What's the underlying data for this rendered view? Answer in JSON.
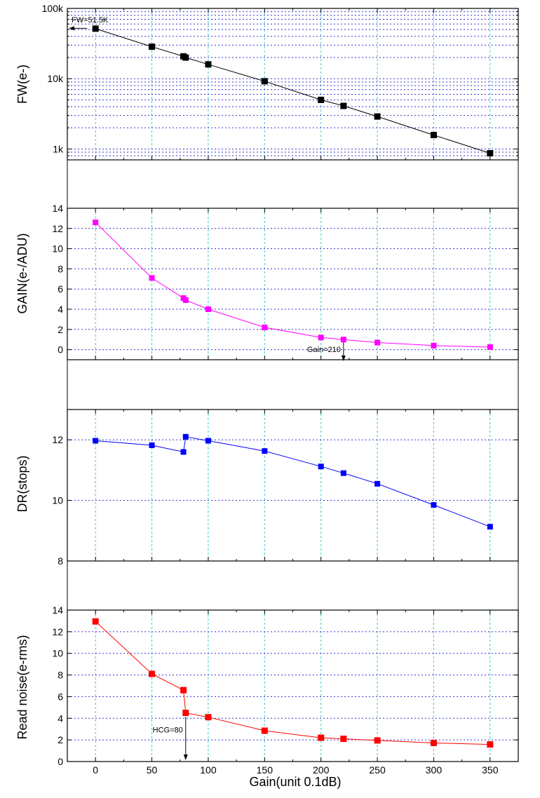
{
  "x_axis": {
    "label": "Gain(unit 0.1dB)",
    "ticks": [
      0,
      50,
      100,
      150,
      200,
      250,
      300,
      350
    ],
    "range": [
      -25,
      375
    ]
  },
  "chart_data": [
    {
      "type": "line",
      "ylabel": "FW(e-)",
      "yscale": "log",
      "ylim": [
        700,
        100000
      ],
      "yticks": [
        1000,
        10000,
        100000
      ],
      "yticklabels": [
        "1k",
        "10k",
        "100k"
      ],
      "grid": true,
      "color": "#000000",
      "series": [
        {
          "x": [
            0,
            50,
            78,
            80,
            100,
            150,
            200,
            220,
            250,
            300,
            350
          ],
          "y": [
            51500,
            28500,
            20800,
            20000,
            16000,
            9200,
            5000,
            4100,
            2900,
            1580,
            870
          ]
        }
      ],
      "annotations": [
        {
          "text": "FW=51.5K",
          "direction": "left"
        }
      ]
    },
    {
      "type": "line",
      "ylabel": "GAIN(e-/ADU)",
      "ylim": [
        -1,
        14
      ],
      "yticks": [
        0,
        2,
        4,
        6,
        8,
        10,
        12,
        14
      ],
      "grid": true,
      "color": "#ff00ff",
      "series": [
        {
          "x": [
            0,
            50,
            78,
            80,
            100,
            150,
            200,
            220,
            250,
            300,
            350
          ],
          "y": [
            12.6,
            7.1,
            5.1,
            4.9,
            4.0,
            2.2,
            1.2,
            1.0,
            0.7,
            0.4,
            0.25
          ]
        }
      ],
      "annotations": [
        {
          "text": "Gain=210",
          "direction": "down"
        }
      ]
    },
    {
      "type": "line",
      "ylabel": "DR(stops)",
      "ylim": [
        8,
        13
      ],
      "yticks": [
        8,
        10,
        12
      ],
      "grid": true,
      "color": "#0000ff",
      "series": [
        {
          "x": [
            0,
            50,
            78,
            80,
            100,
            150,
            200,
            220,
            250,
            300,
            350
          ],
          "y": [
            11.97,
            11.82,
            11.6,
            12.1,
            11.97,
            11.63,
            11.12,
            10.9,
            10.55,
            9.85,
            9.13
          ]
        }
      ]
    },
    {
      "type": "line",
      "ylabel": "Read noise(e-rms)",
      "ylim": [
        0,
        14
      ],
      "yticks": [
        0,
        2,
        4,
        6,
        8,
        10,
        12,
        14
      ],
      "grid": true,
      "color": "#ff0000",
      "series": [
        {
          "x": [
            0,
            50,
            78,
            80,
            100,
            150,
            200,
            220,
            250,
            300,
            350
          ],
          "y": [
            12.95,
            8.1,
            6.6,
            4.5,
            4.1,
            2.85,
            2.2,
            2.1,
            1.95,
            1.72,
            1.58
          ]
        }
      ],
      "annotations": [
        {
          "text": "HCG=80",
          "direction": "down"
        }
      ]
    }
  ]
}
